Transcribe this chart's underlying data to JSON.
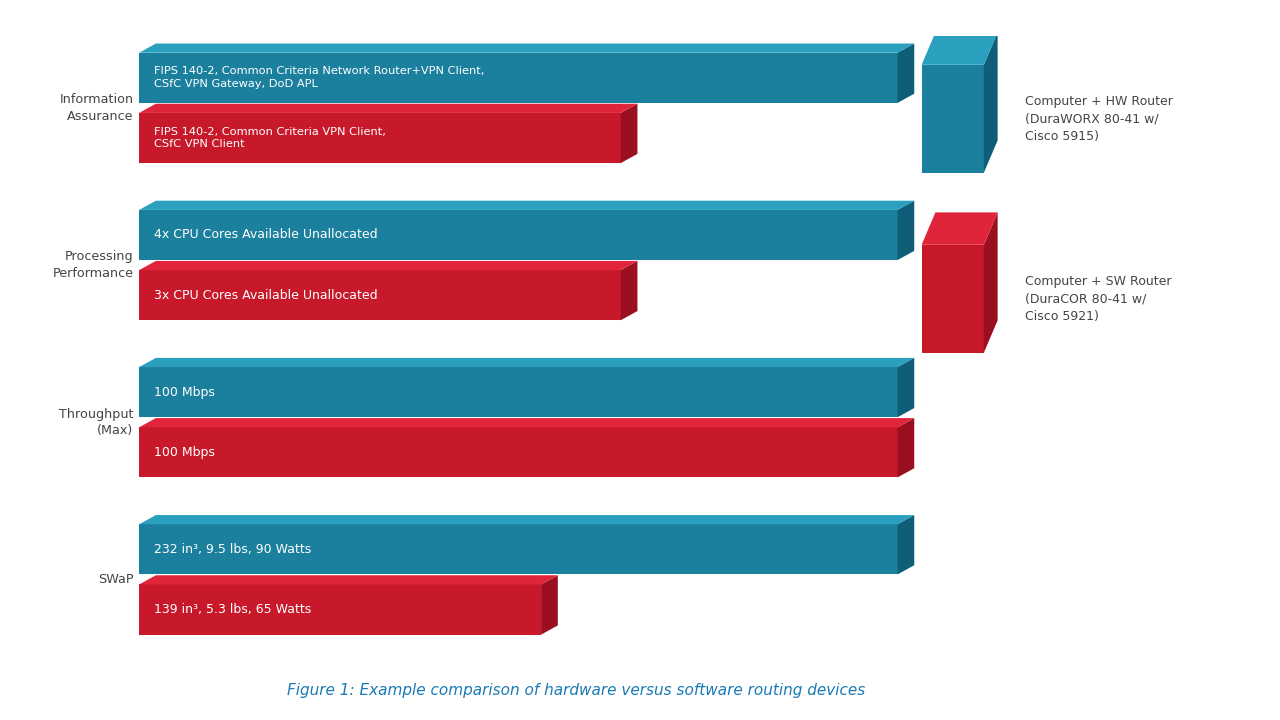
{
  "title": "Figure 1: Example comparison of hardware versus software routing devices",
  "title_color": "#1a7ab5",
  "background_color": "#ffffff",
  "categories": [
    "Information\nAssurance",
    "Processing\nPerformance",
    "Throughput\n(Max)",
    "SWaP"
  ],
  "hw_values": [
    1.0,
    1.0,
    1.0,
    1.0
  ],
  "sw_values": [
    0.635,
    0.635,
    1.0,
    0.53
  ],
  "hw_labels": [
    "FIPS 140-2, Common Criteria Network Router+VPN Client,\nCSfC VPN Gateway, DoD APL",
    "4x CPU Cores Available Unallocated",
    "100 Mbps",
    "232 in³, 9.5 lbs, 90 Watts"
  ],
  "sw_labels": [
    "FIPS 140-2, Common Criteria VPN Client,\nCSfC VPN Client",
    "3x CPU Cores Available Unallocated",
    "100 Mbps",
    "139 in³, 5.3 lbs, 65 Watts"
  ],
  "hw_face_color": "#1b7f9e",
  "hw_top_color": "#2aa0be",
  "hw_side_color": "#0e5e78",
  "sw_face_color": "#c8192b",
  "sw_top_color": "#e0253a",
  "sw_side_color": "#9a1020",
  "legend_hw_label": "Computer + HW Router\n(DuraWORX 80-41 w/\nCisco 5915)",
  "legend_sw_label": "Computer + SW Router\n(DuraCOR 80-41 w/\nCisco 5921)",
  "text_color": "#ffffff",
  "label_color": "#444444",
  "legend_text_color": "#444444"
}
